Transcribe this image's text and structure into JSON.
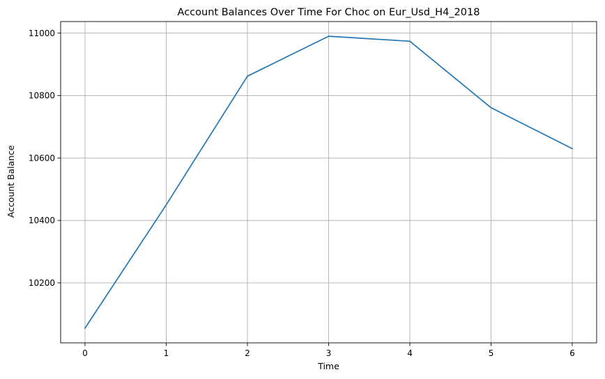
{
  "chart_data": {
    "type": "line",
    "title": "Account Balances Over Time For Choc on Eur_Usd_H4_2018",
    "xlabel": "Time",
    "ylabel": "Account Balance",
    "x": [
      0,
      1,
      2,
      3,
      4,
      5,
      6
    ],
    "series": [
      {
        "values": [
          10055,
          10450,
          10862,
          10990,
          10974,
          10761,
          10630
        ]
      }
    ],
    "xticks": [
      0,
      1,
      2,
      3,
      4,
      5,
      6
    ],
    "xtick_labels": [
      "0",
      "1",
      "2",
      "3",
      "4",
      "5",
      "6"
    ],
    "yticks": [
      10200,
      10400,
      10600,
      10800,
      11000
    ],
    "ytick_labels": [
      "10200",
      "10400",
      "10600",
      "10800",
      "11000"
    ],
    "xlim": [
      -0.3,
      6.3
    ],
    "ylim": [
      10008,
      11037
    ],
    "grid": true,
    "line_color": "#1f77b4"
  }
}
